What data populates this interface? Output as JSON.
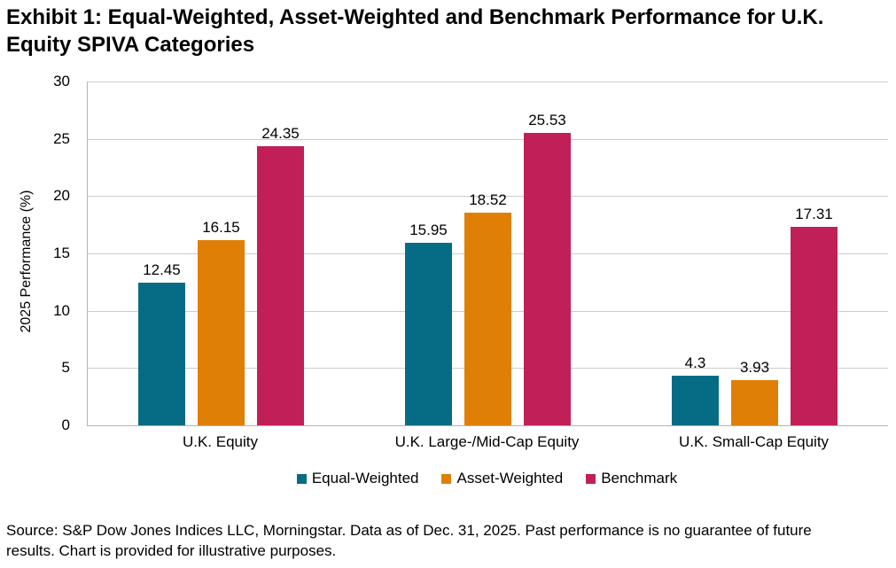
{
  "title": "Exhibit 1: Equal-Weighted, Asset-Weighted and Benchmark Performance for U.K. Equity SPIVA Categories",
  "source": {
    "line1": "Source: S&P Dow Jones Indices LLC, Morningstar. Data as of Dec. 31, 2025. Past performance is no guarantee of future",
    "line2": "results. Chart is provided for illustrative purposes."
  },
  "chart_data": {
    "type": "bar",
    "title": "Exhibit 1: Equal-Weighted, Asset-Weighted and Benchmark Performance for U.K. Equity SPIVA Categories",
    "xlabel": "",
    "ylabel": "2025 Performance (%)",
    "ylim": [
      0,
      30
    ],
    "yticks": [
      0,
      5,
      10,
      15,
      20,
      25,
      30
    ],
    "grid": "horizontal",
    "legend_position": "bottom",
    "categories": [
      "U.K. Equity",
      "U.K. Large-/Mid-Cap Equity",
      "U.K. Small-Cap Equity"
    ],
    "series": [
      {
        "name": "Equal-Weighted",
        "color": "#066C85",
        "values": [
          12.45,
          15.95,
          4.3
        ],
        "labels": [
          "12.45",
          "15.95",
          "4.3"
        ]
      },
      {
        "name": "Asset-Weighted",
        "color": "#DF7F06",
        "values": [
          16.15,
          18.52,
          3.93
        ],
        "labels": [
          "16.15",
          "18.52",
          "3.93"
        ]
      },
      {
        "name": "Benchmark",
        "color": "#C02057",
        "values": [
          24.35,
          25.53,
          17.31
        ],
        "labels": [
          "24.35",
          "25.53",
          "17.31"
        ]
      }
    ],
    "colors": {
      "equal_weighted": "#066C85",
      "asset_weighted": "#DF7F06",
      "benchmark": "#C02057",
      "gridline": "#cccccc",
      "axis": "#b3b3b3",
      "text": "#000000"
    }
  }
}
